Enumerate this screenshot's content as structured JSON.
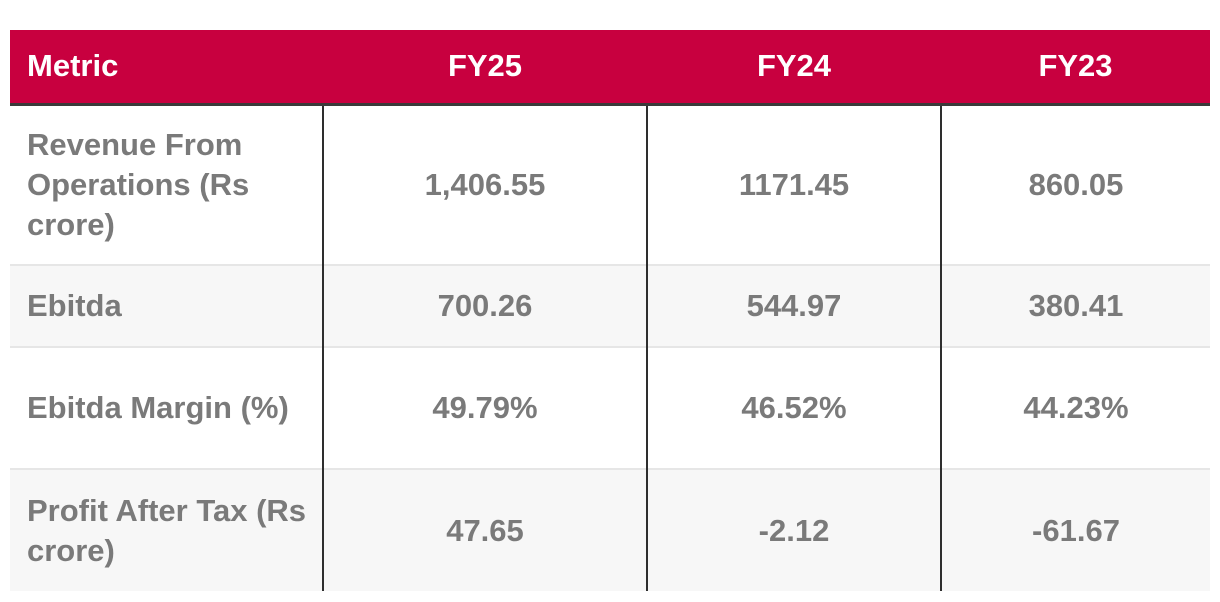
{
  "table": {
    "headers": [
      "Metric",
      "FY25",
      "FY24",
      "FY23"
    ],
    "rows": [
      [
        "Revenue From Operations (Rs crore)",
        "1,406.55",
        "1171.45",
        "860.05"
      ],
      [
        "Ebitda",
        "700.26",
        "544.97",
        "380.41"
      ],
      [
        "Ebitda Margin (%)",
        "49.79%",
        "46.52%",
        "44.23%"
      ],
      [
        "Profit After Tax (Rs crore)",
        "47.65",
        "-2.12",
        "-61.67"
      ]
    ],
    "colors": {
      "header_bg": "#c8003f",
      "header_text": "#ffffff",
      "cell_text": "#7a7a7a",
      "alt_row_bg": "#f7f7f7"
    }
  }
}
